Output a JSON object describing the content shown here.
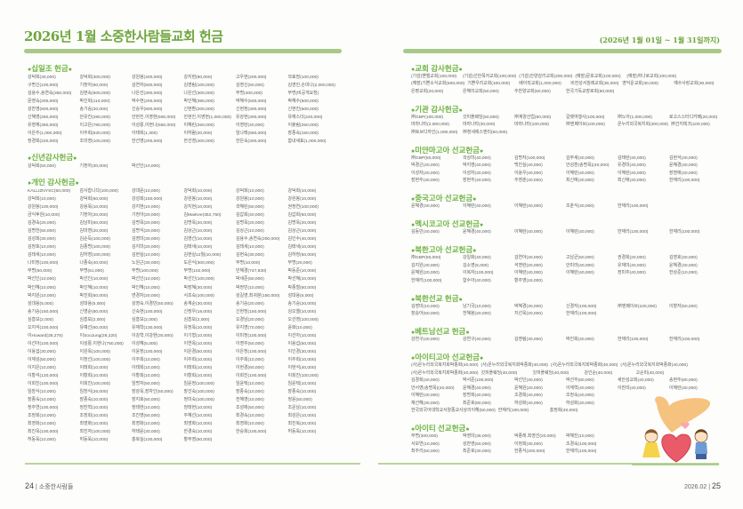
{
  "header": {
    "title": "2026년 1월 소중한사람들교회 헌금",
    "period": "(2026년 1월 01일 ~ 1월 31일까지)"
  },
  "colors": {
    "accent": "#6db33f",
    "bar": "#a9c98a",
    "text": "#5a5a5a"
  },
  "left_page": {
    "sections": [
      {
        "title": "십일조 헌금",
        "rows": [
          [
            "강덕희(30,000)",
            "강덕희(300,000)",
            "강원봉(400,000)",
            "강지현(80,000)",
            "고우현(200,000)",
            "곽효정(100,000)"
          ],
          [
            "구명신(100,000)",
            "기정아(60,000)",
            "김연자(500,000)",
            "김영림(100,000)",
            "김영신(50,000)",
            "김영진,손미나(2,000,000)"
          ],
          [
            "김용수,송연숙(350,000)",
            "김현숙(500,000)",
            "나은선(300,000)",
            "나은선(300,000)",
            "무명(400,000)",
            "무명(비공개요청)"
          ],
          [
            "문영숙(200,000)",
            "박인희(110,000)",
            "박수현(200,000)",
            "박인혜(390,000)",
            "박혜수(500,000)",
            "박혜수(500,000)"
          ],
          [
            "성찬영(600,000)",
            "송기승(20,000)",
            "신승우(800,000)",
            "신현환(200,000)",
            "신현정(300,000)",
            "신현진(500,000)"
          ],
          [
            "신혜영(250,000)",
            "안유진(280,000)",
            "안현진,이영현(500,000)",
            "안현진,이영현(1,000,000)",
            "유광현(300,000)",
            "유예스더(220,000)"
          ],
          [
            "유영재(350,000)",
            "이고은(780,000)",
            "이성룡,이현나(550,000)",
            "이혜린(260,000)",
            "이영란(40,000)",
            "이율림(250,000)"
          ],
          [
            "이은주(1,000,000)",
            "이주희(630,000)",
            "이태희(1,300)",
            "이하람(20,000)",
            "임나래(650,000)",
            "장종숙(150,000)"
          ],
          [
            "정경희(220,000)",
            "조미영(100,000)",
            "한선영(200,000)",
            "한선영(400,000)",
            "한은숙(300,000)",
            "함내새표(1,000,000)"
          ]
        ]
      },
      {
        "title": "신년감사헌금",
        "rows": [
          [
            "강덕희(50,000)",
            "기정아(30,000)",
            "박선인(10,000)"
          ]
        ]
      },
      {
        "title": "개인 감사헌금",
        "rows": [
          [
            "KALLIZNYSC(50,000)",
            "감사합니다(100,000)",
            "강대윤(10,000)",
            "강덕희(10,000)",
            "강덕희(10,000)",
            "강덕희(10,000)"
          ],
          [
            "강덕희(10,000)",
            "강덕희(50,000)",
            "강성희(150,000)",
            "강원봉(10,000)",
            "강원봉(10,000)",
            "강원봉(10,000)"
          ],
          [
            "강원봉(100,000)",
            "강용옥(10,000)",
            "강지현(10,000)",
            "강지현(10,000)",
            "곽혜린(50,000)",
            "권정연(100,000)"
          ],
          [
            "금식후원(10,000)",
            "기정아(20,000)",
            "기정아(20,000)",
            "김MaiKee(352,750)",
            "김갑희(40,000)",
            "김갑희(50,000)"
          ],
          [
            "김경숙(20,000)",
            "김남미(50,000)",
            "김명옥(20,000)",
            "김명옥(20,000)",
            "김명옥(20,000)",
            "김명옥(20,000)"
          ],
          [
            "김명한(50,000)",
            "김미영(20,000)",
            "김명식(20,000)",
            "김상근(10,000)",
            "김상근(10,000)",
            "김상근(10,000)"
          ],
          [
            "김성희(30,000)",
            "김순득(100,000)",
            "김영미(30,000)",
            "김영선(10,000)",
            "김용수,송연숙(200,000)",
            "김인수(40,000)"
          ],
          [
            "김정호(10,000)",
            "김종명(100,000)",
            "김지미(20,000)",
            "김태세(10,000)",
            "김태세(10,000)",
            "김태세(10,000)"
          ],
          [
            "김태세(10,000)",
            "김하영(100,000)",
            "김현실(10,000)",
            "김현실12월(10,000)",
            "김현숙(30,000)",
            "김하정(50,000)"
          ],
          [
            "나미정(100,000)",
            "나종숙(40,000)",
            "노원근(30,000)",
            "도은식(300,000)",
            "무명(10,000)",
            "무명(20,000)"
          ],
          [
            "무명(50,000)",
            "무명(51,000)",
            "무명(100,000)",
            "무명(102,000)",
            "민혜경(747,830)",
            "박동준(10,000)"
          ],
          [
            "박선인(10,000)",
            "박선인(10,000)",
            "박선인(10,000)",
            "박선인(100,000)",
            "박세준(50,000)",
            "박선혜(10,000)"
          ],
          [
            "박인혜(10,000)",
            "박인혜(10,000)",
            "박인혜(10,000)",
            "박장혜(30,000)",
            "박정민(10,000)",
            "박종철(50,000)"
          ],
          [
            "박지원(10,000)",
            "박진희(50,000)",
            "변경자(20,000)",
            "서초숙(100,000)",
            "성길영,최귀분(150,000)",
            "성대용(5,000)"
          ],
          [
            "성대용(5,000)",
            "성대용(5,000)",
            "성영숙,이경민(50,000)",
            "송계순(30,000)",
            "송기승(20,000)",
            "송기승(20,000)"
          ],
          [
            "송기승(150,000)",
            "신영순(80,000)",
            "신숙현(100,000)",
            "신정우(18,000)",
            "신현정(150,000)",
            "심오엘(10,000)"
          ],
          [
            "심흥보(2,000)",
            "심흥보(2,000)",
            "심흥보(2,000)",
            "심흥보(2,000)",
            "오경남(20,000)",
            "오선영(100,000)"
          ],
          [
            "오지석(100,000)",
            "유예선(60,000)",
            "유재학(130,000)",
            "유정옥(10,000)",
            "유지영(70,000)",
            "윤화(10,000)"
          ],
          [
            "이Howard(35,275)",
            "이SooJung(28,220)",
            "이강혁,이강현(30,000)",
            "이기형(10,000)",
            "이미정(100,000)",
            "이선아(10,000)"
          ],
          [
            "이선아(100,000)",
            "이성룡,이현나(750,000)",
            "이성혜(5,000)",
            "이연옥(10,000)",
            "이영주(50,000)",
            "이용섭(50,000)"
          ],
          [
            "이용섭(30,000)",
            "이원옥(100,000)",
            "이윤정(100,000)",
            "이은경(50,000)",
            "이은정(100,000)",
            "이인경(30,000)"
          ],
          [
            "이재성(50,000)",
            "이정선(100,000)",
            "이주희(10,000)",
            "이주희(10,000)",
            "이주희(10,000)",
            "이주희(10,000)"
          ],
          [
            "이지은(10,000)",
            "이태희(10,000)",
            "이태희(10,000)",
            "이태희(10,000)",
            "이현경(60,000)",
            "이현석(40,000)"
          ],
          [
            "이황석(120,000)",
            "이황희(10,000)",
            "이황희(10,000)",
            "이황희(10,000)",
            "이희진(100,000)",
            "이희진(100,000)"
          ],
          [
            "이희진(100,000)",
            "이희진(100,000)",
            "임명자(50,000)",
            "임윤정(100,000)",
            "임윤택(10,000)",
            "임윤택(10,000)"
          ],
          [
            "임창식(10,000)",
            "임창식(26,000)",
            "장광옥,장자인(50,000)",
            "장선숙(100,000)",
            "장종숙(10,000)",
            "장종숙(10,000)"
          ],
          [
            "장종숙(10,000)",
            "장종숙(10,000)",
            "장지호(50,000)",
            "정미숙(100,000)",
            "전혜영(10,000)",
            "정윤(50,000)"
          ],
          [
            "정주연(100,000)",
            "정찬혁(10,000)",
            "정태현(10,000)",
            "정태현(10,000)",
            "조성애(50,000)",
            "조운남(10,000)"
          ],
          [
            "조정희(10,000)",
            "조정희(10,000)",
            "조진영(50,000)",
            "주혜선(10,000)",
            "최경숙(10,000)",
            "최성은(10,000)"
          ],
          [
            "최영화(10,000)",
            "최영화(10,000)",
            "최영화(10,000)",
            "최영화(10,000)",
            "최영화(10,000)",
            "최진복(20,000)"
          ],
          [
            "최진옥(100,000)",
            "최진자(100,000)",
            "하태윤(30,000)",
            "한경숙(10,000)",
            "한승희(100,000)",
            "허동욱(10,000)"
          ],
          [
            "허동욱(10,000)",
            "허동욱(10,000)",
            "홍복실(100,000)",
            "황부영(50,000)"
          ]
        ]
      }
    ],
    "footer": {
      "page": "24",
      "separator": "|",
      "name": "소중한사람들"
    }
  },
  "right_page": {
    "sections": [
      {
        "title": "교회 감사헌금",
        "rows": [
          [
            "(기감)벧엘교회(100,000)",
            "(기감)선한목자교회(100,000)",
            "(기감)안양감리교회(200,000)",
            "(예장)문호교회(100,000)",
            "(예장)하나로교회(100,000)"
          ],
          [
            "(예장)기쁜소식교회(500,000)",
            "기쁜우리교회(100,000)",
            "베이직교회(1,000,000)",
            "비전성서침례교회(30,000)",
            "영익운교회(30,000)",
            "예수사랑교회(30,000)"
          ],
          [
            "은평교회(20,000)",
            "은혜의교회(50,000)",
            "주찬양교회(50,000)",
            "한국기독교장로회(50,000)"
          ]
        ]
      },
      {
        "title": "기관 감사헌금",
        "rows": [
          [
            "㈜GBP(100,000)",
            "갓피플웨딩(50,000)",
            "㈜계양산업(50,000)",
            "갈렛여행사(100,000)",
            "㈜노아(1,000,000)",
            "로고스스터디카페(20,000)"
          ],
          [
            "마라나타(2,000,000)",
            "마라나타(30,000)",
            "마라나타(100,000)",
            "㈜엔페이브(100,000)",
            "온누리외국복지회(300,000)",
            "㈜건지테크(100,000)"
          ],
          [
            "㈜토브디자인(1,000,000)",
            "㈜청세에스엔티(50,000)"
          ]
        ]
      },
      {
        "title": "미얀마고아 선교헌금",
        "rows": [
          [
            "㈜GBP(50,000)",
            "곽상미(40,000)",
            "김명자(100,000)",
            "김부새(40,000)",
            "김태란(40,000)",
            "김현석(40,000)"
          ],
          [
            "박경근(40,000)",
            "박지영(40,000)",
            "백진실(40,000)",
            "안성훈(송명옥)(40,000)",
            "유경미(40,000)",
            "윤혜경(40,000)"
          ],
          [
            "이성자(40,000)",
            "이성자(40,000)",
            "이용우(40,000)",
            "이혜란(40,000)",
            "이혜란(40,000)",
            "장영애(40,000)"
          ],
          [
            "장현주(40,000)",
            "장현주(40,000)",
            "주영춘(40,000)",
            "최신애(40,000)",
            "최신애(40,000)",
            "한재리(100,000)"
          ]
        ]
      },
      {
        "title": "중국고아 선교헌금",
        "rows": [
          [
            "윤혜경(40,000)",
            "이혜란(40,000)",
            "이혜란(40,000)",
            "조춘식(40,000)",
            "한재리(100,000)"
          ]
        ]
      },
      {
        "title": "멕시코고아 선교헌금",
        "rows": [
          [
            "김동민(40,000)",
            "윤혜경(40,000)",
            "이혜란(40,000)",
            "이혜란(40,000)",
            "한재리(100,000)",
            "한재리(100,000)"
          ]
        ]
      },
      {
        "title": "북한고아 선교헌금",
        "rows": [
          [
            "㈜GBP(50,000)",
            "강일화(40,000)",
            "김연아(40,000)",
            "고남균(50,000)",
            "권경희(20,000)",
            "김영호(30,000)"
          ],
          [
            "김지원(40,000)",
            "김소영(5,000)",
            "석영란(20,000)",
            "안미라(40,000)",
            "유재미(40,000)",
            "윤혜경(40,000)"
          ],
          [
            "윤혜원(20,000)",
            "이복자(100,000)",
            "이혜란(40,000)",
            "이혜란(40,000)",
            "정미주(40,000)",
            "한상준(10,000)"
          ],
          [
            "한재리(100,000)",
            "함수아(40,000)",
            "황주영(15,000)"
          ]
        ]
      },
      {
        "title": "북한선교 헌금",
        "rows": [
          [
            "김영미(10,000)",
            "남기국(10,000)",
            "박혜경(30,000)",
            "신경자(100,000)",
            "㈜엔페이브(100,000)",
            "이향자(50,000)"
          ],
          [
            "장승아(50,000)",
            "전혜봉(20,000)",
            "지선옥(20,000)",
            "한재리(100,000)"
          ]
        ]
      },
      {
        "title": "베트남선교 헌금",
        "rows": [
          [
            "강연구(40,000)",
            "강연구(40,000)",
            "김영림(30,000)",
            "박진희(40,000)",
            "한재리(100,000)",
            "한재리(100,000)"
          ]
        ]
      },
      {
        "title": "아이티고아 선교헌금",
        "rows": [
          [
            "(사)온누리외국복지회박종화(40,000)",
            "(사)온누리외국복지회박종화(40,000)",
            "(사)온누리외국복지회박종화(40,000)",
            "(사)온누리외국복지회박종화(40,000)"
          ],
          [
            "(사)온누리외국복지회박종화(40,000)",
            "갓피플웨딩(40,000)",
            "갓피플웨딩(40,000)",
            "강인순(40,000)",
            "고순미(40,000)"
          ],
          [
            "김경희(40,000)",
            "박서준(100,000)",
            "박선인(40,000)",
            "박선주(80,000)",
            "새안성교회(40,000)",
            "송현주(80,000)"
          ],
          [
            "안서영(송명옥)(40,000)",
            "윤혜경(40,000)",
            "윤혜원(20,000)",
            "이재혁(40,000)",
            "이찬미(40,000)",
            "이혜란(40,000)"
          ],
          [
            "이혜란(40,000)",
            "장명희(40,000)",
            "조경희(40,000)",
            "조정숙(40,000)"
          ],
          [
            "채선혜(30,000)",
            "최준호(80,000)",
            "하성화(40,000)",
            "하성화(40,000)"
          ],
          [
            "한국외국어대학교서양종교사상의이해(50,000)",
            "한재리(100,000)",
            "홍정희(40,000)"
          ]
        ]
      },
      {
        "title": "아이티 선교헌금",
        "rows": [
          [
            "무명(300,000)",
            "박영미(35,000)",
            "박종래,최영선(20,000)",
            "박혜진(10,000)"
          ],
          [
            "서보연(10,000)",
            "성찬영(50,000)",
            "이정희(30,000)",
            "조경숙(100,000)"
          ],
          [
            "최주리(50,000)",
            "최준호(30,000)",
            "한종식(200,000)",
            "한재리(100,000)"
          ]
        ]
      }
    ],
    "footer": {
      "date": "2026.02",
      "separator": "|",
      "page": "25"
    },
    "illustration": "children-holding-heart"
  }
}
